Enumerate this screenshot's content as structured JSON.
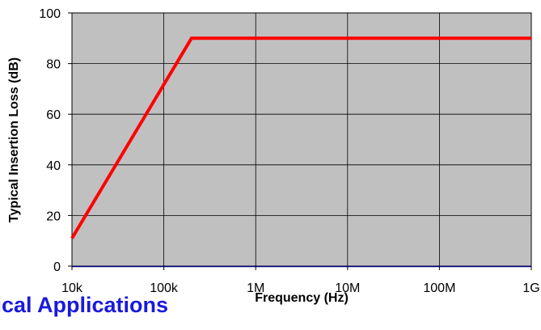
{
  "section_heading": "pical Applications",
  "chart_data": {
    "type": "line",
    "title": "",
    "xlabel": "Frequency (Hz)",
    "ylabel": "Typical Insertion Loss (dB)",
    "xscale": "log",
    "xlim": [
      10000,
      1000000000
    ],
    "ylim": [
      0,
      100
    ],
    "x_ticks": [
      {
        "value": 10000,
        "label": "10k"
      },
      {
        "value": 100000,
        "label": "100k"
      },
      {
        "value": 1000000,
        "label": "1M"
      },
      {
        "value": 10000000,
        "label": "10M"
      },
      {
        "value": 100000000,
        "label": "100M"
      },
      {
        "value": 1000000000,
        "label": "1G"
      }
    ],
    "y_ticks": [
      {
        "value": 0,
        "label": "0"
      },
      {
        "value": 20,
        "label": "20"
      },
      {
        "value": 40,
        "label": "40"
      },
      {
        "value": 60,
        "label": "60"
      },
      {
        "value": 80,
        "label": "80"
      },
      {
        "value": 100,
        "label": "100"
      }
    ],
    "grid": true,
    "legend": "none",
    "plot_background": "#c0c0c0",
    "series": [
      {
        "color": "#ff0000",
        "points": [
          {
            "x": 10000,
            "y": 11
          },
          {
            "x": 200000,
            "y": 90
          },
          {
            "x": 1000000000,
            "y": 90
          }
        ]
      }
    ]
  }
}
